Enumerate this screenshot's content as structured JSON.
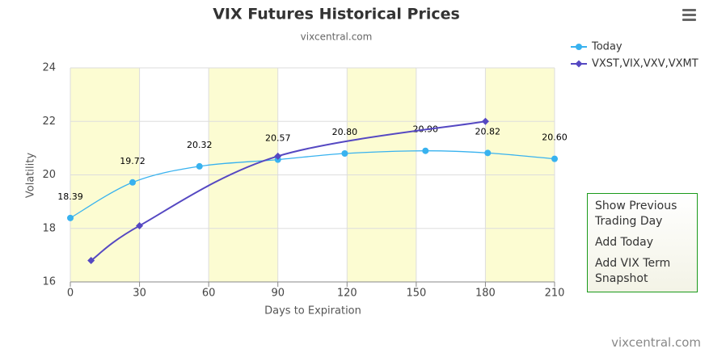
{
  "chart_data": {
    "type": "line",
    "title": "VIX Futures Historical Prices",
    "subtitle": "vixcentral.com",
    "x_label": "Days to Expiration",
    "y_label": "Volatility",
    "xlim": [
      0,
      210
    ],
    "xticks": [
      0,
      30,
      60,
      90,
      120,
      150,
      180,
      210
    ],
    "ylim": [
      16,
      24
    ],
    "yticks": [
      16,
      18,
      20,
      22,
      24
    ],
    "grid": true,
    "legend": "top-right",
    "series": [
      {
        "name": "Today",
        "color": "#38b2ef",
        "marker": "circle",
        "x": [
          0,
          27,
          56,
          90,
          119,
          154,
          181,
          210
        ],
        "values": [
          18.39,
          19.72,
          20.32,
          20.57,
          20.8,
          20.9,
          20.82,
          20.6
        ],
        "value_labels": [
          "18.39",
          "19.72",
          "20.32",
          "20.57",
          "20.80",
          "20.90",
          "20.82",
          "20.60"
        ]
      },
      {
        "name": "VXST,VIX,VXV,VXMT",
        "color": "#5548c2",
        "marker": "diamond",
        "x": [
          9,
          30,
          90,
          180
        ],
        "values": [
          16.8,
          18.1,
          20.7,
          22.0
        ]
      }
    ]
  },
  "menu": [
    "Show Previous Trading Day",
    "Add Today",
    "Add VIX Term Snapshot"
  ],
  "credit": "vixcentral.com"
}
